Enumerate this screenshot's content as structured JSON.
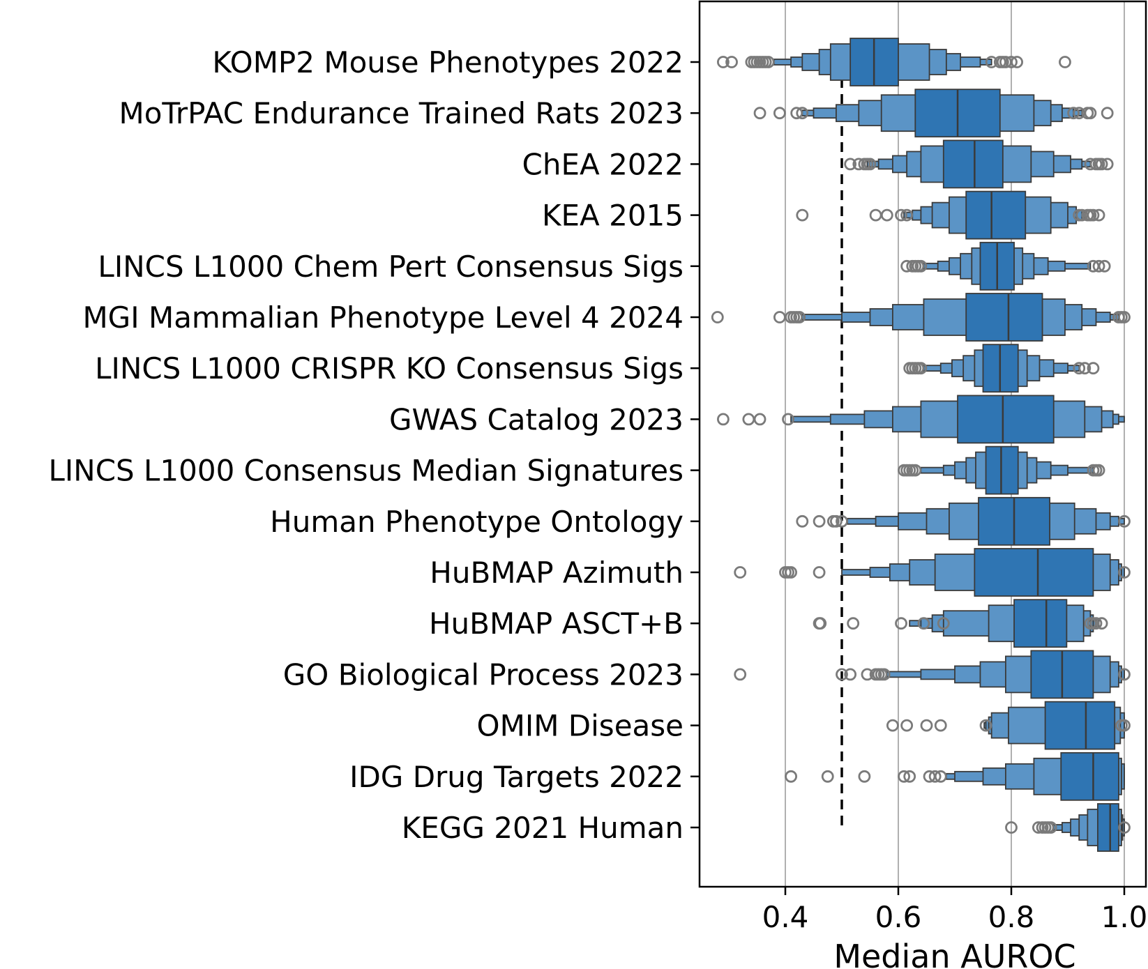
{
  "chart_data": {
    "type": "boxen",
    "orientation": "horizontal",
    "xlabel": "Median AUROC",
    "ylabel": "",
    "title": "",
    "xlim": [
      0.25,
      1.0
    ],
    "xticks": [
      0.4,
      0.6,
      0.8,
      1.0
    ],
    "xtick_labels": [
      "0.4",
      "0.6",
      "0.8",
      "1.0"
    ],
    "grid": "vertical",
    "reference_line": {
      "x": 0.5,
      "style": "dashed"
    },
    "colors": {
      "box": "#2f75b3",
      "box_light": "#5b94c6",
      "edge": "#3a3a3a",
      "outlier": "#7a7a7a",
      "grid": "#b0b0b0"
    },
    "categories": [
      {
        "label": "KOMP2 Mouse Phenotypes 2022",
        "median": 0.557,
        "levels": [
          [
            0.515,
            0.6
          ],
          [
            0.48,
            0.655
          ],
          [
            0.46,
            0.685
          ],
          [
            0.43,
            0.71
          ],
          [
            0.41,
            0.745
          ],
          [
            0.38,
            0.765
          ]
        ],
        "outliers": [
          0.29,
          0.305,
          0.34,
          0.345,
          0.35,
          0.355,
          0.36,
          0.365,
          0.37,
          0.765,
          0.78,
          0.785,
          0.79,
          0.8,
          0.81,
          0.895
        ]
      },
      {
        "label": "MoTrPAC Endurance Trained Rats 2023",
        "median": 0.705,
        "levels": [
          [
            0.63,
            0.78
          ],
          [
            0.57,
            0.84
          ],
          [
            0.53,
            0.87
          ],
          [
            0.49,
            0.89
          ],
          [
            0.45,
            0.91
          ],
          [
            0.43,
            0.925
          ]
        ],
        "outliers": [
          0.355,
          0.39,
          0.42,
          0.43,
          0.91,
          0.92,
          0.935,
          0.94,
          0.97
        ]
      },
      {
        "label": "ChEA 2022",
        "median": 0.735,
        "levels": [
          [
            0.68,
            0.785
          ],
          [
            0.64,
            0.835
          ],
          [
            0.615,
            0.875
          ],
          [
            0.59,
            0.905
          ],
          [
            0.565,
            0.925
          ],
          [
            0.545,
            0.94
          ]
        ],
        "outliers": [
          0.515,
          0.53,
          0.54,
          0.545,
          0.55,
          0.94,
          0.95,
          0.955,
          0.96,
          0.97
        ]
      },
      {
        "label": "KEA 2015",
        "median": 0.765,
        "levels": [
          [
            0.72,
            0.825
          ],
          [
            0.69,
            0.87
          ],
          [
            0.66,
            0.9
          ],
          [
            0.64,
            0.915
          ],
          [
            0.625,
            0.925
          ],
          [
            0.61,
            0.93
          ]
        ],
        "outliers": [
          0.43,
          0.56,
          0.58,
          0.605,
          0.615,
          0.92,
          0.925,
          0.935,
          0.94,
          0.945,
          0.955
        ]
      },
      {
        "label": "LINCS L1000 Chem Pert Consensus Sigs",
        "median": 0.775,
        "levels": [
          [
            0.745,
            0.805
          ],
          [
            0.73,
            0.82
          ],
          [
            0.71,
            0.84
          ],
          [
            0.69,
            0.865
          ],
          [
            0.67,
            0.895
          ],
          [
            0.645,
            0.94
          ]
        ],
        "outliers": [
          0.615,
          0.625,
          0.63,
          0.635,
          0.64,
          0.945,
          0.955,
          0.965
        ]
      },
      {
        "label": "MGI Mammalian Phenotype Level 4 2024",
        "median": 0.795,
        "levels": [
          [
            0.72,
            0.855
          ],
          [
            0.645,
            0.895
          ],
          [
            0.59,
            0.925
          ],
          [
            0.55,
            0.95
          ],
          [
            0.5,
            0.975
          ],
          [
            0.43,
            0.99
          ]
        ],
        "outliers": [
          0.28,
          0.39,
          0.41,
          0.415,
          0.42,
          0.425,
          0.99,
          0.995,
          1.0
        ]
      },
      {
        "label": "LINCS L1000 CRISPR KO Consensus Sigs",
        "median": 0.78,
        "levels": [
          [
            0.75,
            0.812
          ],
          [
            0.735,
            0.828
          ],
          [
            0.715,
            0.85
          ],
          [
            0.695,
            0.875
          ],
          [
            0.675,
            0.9
          ],
          [
            0.645,
            0.92
          ]
        ],
        "outliers": [
          0.62,
          0.625,
          0.63,
          0.635,
          0.64,
          0.92,
          0.93,
          0.945
        ]
      },
      {
        "label": "GWAS Catalog 2023",
        "median": 0.785,
        "levels": [
          [
            0.705,
            0.875
          ],
          [
            0.64,
            0.93
          ],
          [
            0.59,
            0.96
          ],
          [
            0.54,
            0.98
          ],
          [
            0.48,
            0.99
          ],
          [
            0.41,
            1.0
          ]
        ],
        "outliers": [
          0.29,
          0.335,
          0.355,
          0.405
        ]
      },
      {
        "label": "LINCS L1000 Consensus Median Signatures",
        "median": 0.782,
        "levels": [
          [
            0.755,
            0.812
          ],
          [
            0.737,
            0.828
          ],
          [
            0.72,
            0.845
          ],
          [
            0.7,
            0.87
          ],
          [
            0.68,
            0.9
          ],
          [
            0.64,
            0.945
          ]
        ],
        "outliers": [
          0.61,
          0.615,
          0.62,
          0.625,
          0.63,
          0.945,
          0.95,
          0.955
        ]
      },
      {
        "label": "Human Phenotype Ontology",
        "median": 0.805,
        "levels": [
          [
            0.742,
            0.868
          ],
          [
            0.69,
            0.912
          ],
          [
            0.65,
            0.95
          ],
          [
            0.6,
            0.975
          ],
          [
            0.56,
            0.99
          ],
          [
            0.51,
            1.0
          ]
        ],
        "outliers": [
          0.43,
          0.46,
          0.485,
          0.49,
          0.5,
          1.0
        ]
      },
      {
        "label": "HuBMAP Azimuth",
        "median": 0.847,
        "levels": [
          [
            0.735,
            0.945
          ],
          [
            0.665,
            0.975
          ],
          [
            0.62,
            0.99
          ],
          [
            0.585,
            0.995
          ],
          [
            0.55,
            1.0
          ],
          [
            0.5,
            1.0
          ]
        ],
        "outliers": [
          0.32,
          0.4,
          0.405,
          0.41,
          0.46,
          1.0
        ]
      },
      {
        "label": "HuBMAP ASCT+B",
        "median": 0.862,
        "levels": [
          [
            0.805,
            0.898
          ],
          [
            0.76,
            0.928
          ],
          [
            0.68,
            0.94
          ],
          [
            0.66,
            0.945
          ],
          [
            0.64,
            0.95
          ],
          [
            0.62,
            0.955
          ]
        ],
        "outliers": [
          0.46,
          0.462,
          0.52,
          0.605,
          0.645,
          0.68,
          0.94,
          0.945,
          0.95,
          0.96
        ]
      },
      {
        "label": "GO Biological Process 2023",
        "median": 0.89,
        "levels": [
          [
            0.835,
            0.945
          ],
          [
            0.79,
            0.975
          ],
          [
            0.745,
            0.99
          ],
          [
            0.7,
            0.995
          ],
          [
            0.64,
            1.0
          ],
          [
            0.58,
            1.0
          ]
        ],
        "outliers": [
          0.32,
          0.5,
          0.515,
          0.545,
          0.56,
          0.565,
          0.57,
          0.575,
          1.0
        ]
      },
      {
        "label": "OMIM Disease",
        "median": 0.932,
        "levels": [
          [
            0.86,
            0.983
          ],
          [
            0.795,
            0.993
          ],
          [
            0.765,
            1.0
          ],
          [
            0.76,
            1.0
          ],
          [
            0.755,
            1.0
          ],
          [
            0.752,
            1.0
          ]
        ],
        "outliers": [
          0.59,
          0.615,
          0.65,
          0.675,
          0.755,
          0.995,
          1.0
        ]
      },
      {
        "label": "IDG Drug Targets 2022",
        "median": 0.945,
        "levels": [
          [
            0.888,
            0.99
          ],
          [
            0.84,
            0.995
          ],
          [
            0.79,
            1.0
          ],
          [
            0.75,
            1.0
          ],
          [
            0.7,
            1.0
          ],
          [
            0.685,
            1.0
          ]
        ],
        "outliers": [
          0.41,
          0.475,
          0.54,
          0.61,
          0.62,
          0.655,
          0.665,
          0.675
        ]
      },
      {
        "label": "KEGG 2021 Human",
        "median": 0.975,
        "levels": [
          [
            0.953,
            0.99
          ],
          [
            0.935,
            0.995
          ],
          [
            0.92,
            0.997
          ],
          [
            0.905,
            1.0
          ],
          [
            0.89,
            1.0
          ],
          [
            0.875,
            1.0
          ]
        ],
        "outliers": [
          0.8,
          0.848,
          0.855,
          0.86,
          0.865,
          0.87,
          1.0
        ]
      }
    ]
  }
}
